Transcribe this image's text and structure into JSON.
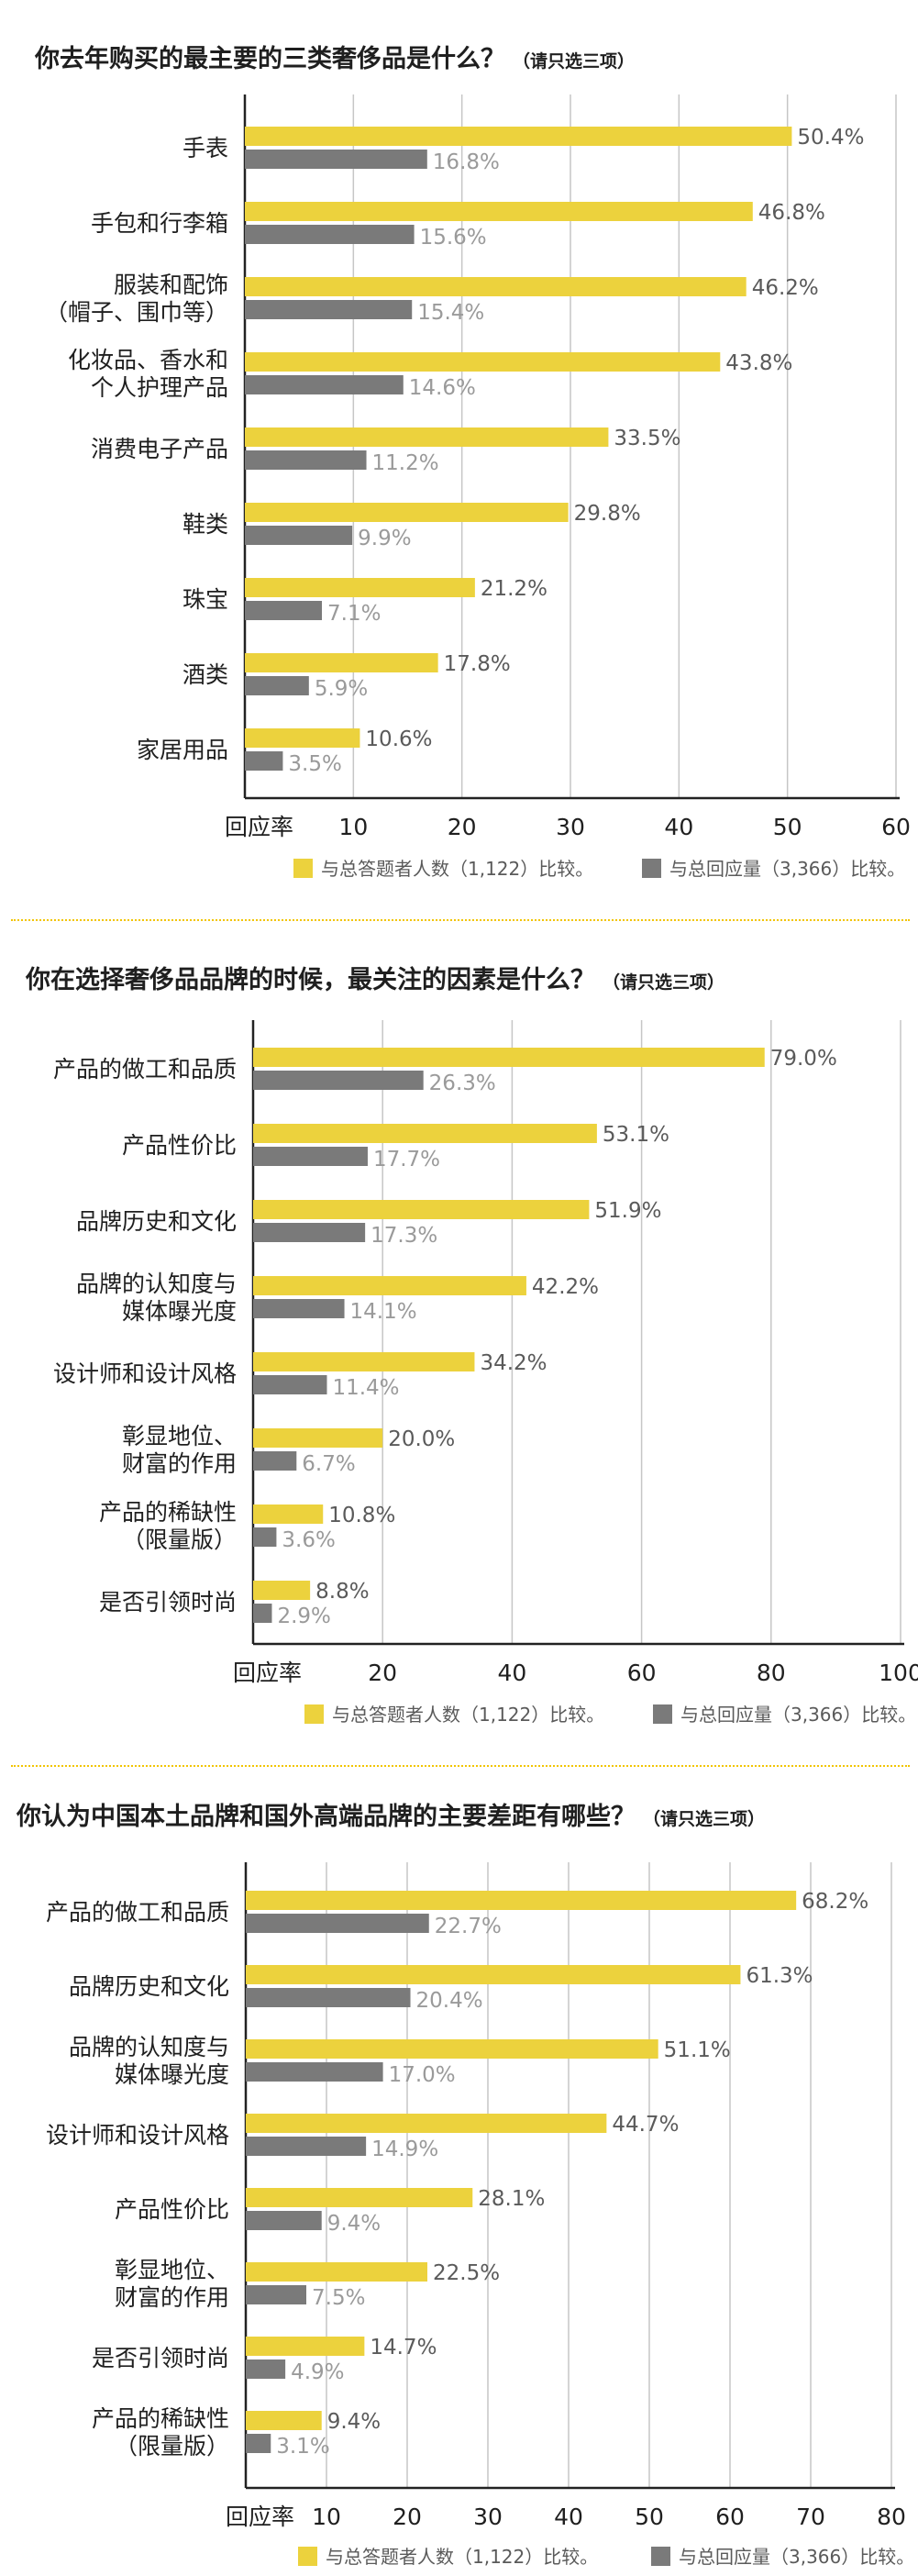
{
  "colors": {
    "yellow": "#ecd23d",
    "gray": "#7a7a7a",
    "grid": "#c6c6c6",
    "divider": "#f2c500"
  },
  "chart_data": [
    {
      "type": "bar",
      "orientation": "horizontal",
      "title": "你去年购买的最主要的三类奢侈品是什么？",
      "title_note": "（请只选三项）",
      "axis_label": "回应率",
      "ticks": [
        "10",
        "20",
        "30",
        "40",
        "50",
        "60"
      ],
      "xlim": [
        0,
        60
      ],
      "grid": true,
      "categories": [
        [
          "手表"
        ],
        [
          "手包和行李箱"
        ],
        [
          "服装和配饰",
          "（帽子、围巾等）"
        ],
        [
          "化妆品、香水和",
          "个人护理产品"
        ],
        [
          "消费电子产品"
        ],
        [
          "鞋类"
        ],
        [
          "珠宝"
        ],
        [
          "酒类"
        ],
        [
          "家居用品"
        ]
      ],
      "series": [
        {
          "name": "与总答题者人数（1,122）比较。",
          "color": "yellow",
          "values": [
            50.4,
            46.8,
            46.2,
            43.8,
            33.5,
            29.8,
            21.2,
            17.8,
            10.6
          ],
          "labels": [
            "50.4%",
            "46.8%",
            "46.2%",
            "43.8%",
            "33.5%",
            "29.8%",
            "21.2%",
            "17.8%",
            "10.6%"
          ]
        },
        {
          "name": "与总回应量（3,366）比较。",
          "color": "gray",
          "values": [
            16.8,
            15.6,
            15.4,
            14.6,
            11.2,
            9.9,
            7.1,
            5.9,
            3.5
          ],
          "labels": [
            "16.8%",
            "15.6%",
            "15.4%",
            "14.6%",
            "11.2%",
            "9.9%",
            "7.1%",
            "5.9%",
            "3.5%"
          ]
        }
      ]
    },
    {
      "type": "bar",
      "orientation": "horizontal",
      "title": "你在选择奢侈品品牌的时候，最关注的因素是什么？",
      "title_note": "（请只选三项）",
      "axis_label": "回应率",
      "ticks": [
        "20",
        "40",
        "60",
        "80",
        "100"
      ],
      "xlim": [
        0,
        100
      ],
      "grid": true,
      "categories": [
        [
          "产品的做工和品质"
        ],
        [
          "产品性价比"
        ],
        [
          "品牌历史和文化"
        ],
        [
          "品牌的认知度与",
          "媒体曝光度"
        ],
        [
          "设计师和设计风格"
        ],
        [
          "彰显地位、",
          "财富的作用"
        ],
        [
          "产品的稀缺性",
          "（限量版）"
        ],
        [
          "是否引领时尚"
        ]
      ],
      "series": [
        {
          "name": "与总答题者人数（1,122）比较。",
          "color": "yellow",
          "values": [
            79.0,
            53.1,
            51.9,
            42.2,
            34.2,
            20.0,
            10.8,
            8.8
          ],
          "labels": [
            "79.0%",
            "53.1%",
            "51.9%",
            "42.2%",
            "34.2%",
            "20.0%",
            "10.8%",
            "8.8%"
          ]
        },
        {
          "name": "与总回应量（3,366）比较。",
          "color": "gray",
          "values": [
            26.3,
            17.7,
            17.3,
            14.1,
            11.4,
            6.7,
            3.6,
            2.9
          ],
          "labels": [
            "26.3%",
            "17.7%",
            "17.3%",
            "14.1%",
            "11.4%",
            "6.7%",
            "3.6%",
            "2.9%"
          ]
        }
      ]
    },
    {
      "type": "bar",
      "orientation": "horizontal",
      "title": "你认为中国本土品牌和国外高端品牌的主要差距有哪些？",
      "title_note": "（请只选三项）",
      "axis_label": "回应率",
      "ticks": [
        "10",
        "20",
        "30",
        "40",
        "50",
        "60",
        "70",
        "80"
      ],
      "xlim": [
        0,
        80
      ],
      "grid": true,
      "categories": [
        [
          "产品的做工和品质"
        ],
        [
          "品牌历史和文化"
        ],
        [
          "品牌的认知度与",
          "媒体曝光度"
        ],
        [
          "设计师和设计风格"
        ],
        [
          "产品性价比"
        ],
        [
          "彰显地位、",
          "财富的作用"
        ],
        [
          "是否引领时尚"
        ],
        [
          "产品的稀缺性",
          "（限量版）"
        ]
      ],
      "series": [
        {
          "name": "与总答题者人数（1,122）比较。",
          "color": "yellow",
          "values": [
            68.2,
            61.3,
            51.1,
            44.7,
            28.1,
            22.5,
            14.7,
            9.4
          ],
          "labels": [
            "68.2%",
            "61.3%",
            "51.1%",
            "44.7%",
            "28.1%",
            "22.5%",
            "14.7%",
            "9.4%"
          ]
        },
        {
          "name": "与总回应量（3,366）比较。",
          "color": "gray",
          "values": [
            22.7,
            20.4,
            17.0,
            14.9,
            9.4,
            7.5,
            4.9,
            3.1
          ],
          "labels": [
            "22.7%",
            "20.4%",
            "17.0%",
            "14.9%",
            "9.4%",
            "7.5%",
            "4.9%",
            "3.1%"
          ]
        }
      ]
    }
  ]
}
